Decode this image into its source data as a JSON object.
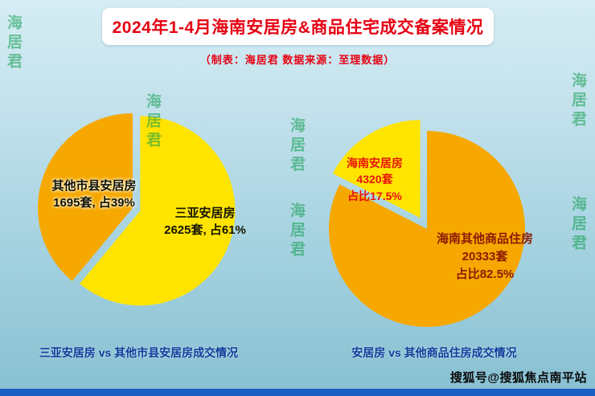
{
  "page": {
    "title": "2024年1-4月海南安居房&商品住宅成交备案情况",
    "subtitle": "（制表：海居君   数据来源：至理数据）",
    "watermark": "海居君",
    "footer_credit": "搜狐号@搜狐焦点南平站"
  },
  "colors": {
    "yellow_slice": "#ffe400",
    "orange_slice": "#f6a800",
    "title_red": "#e60012",
    "caption_blue": "#0e3c9c",
    "watermark_green": "#0e9c4c",
    "bottom_bar_blue": "#1a5ec4"
  },
  "chart_data": [
    {
      "type": "pie",
      "title": "三亚安居房 vs 其他市县安居房成交情况",
      "legend_position": "none",
      "slices": [
        {
          "label": "三亚安居房",
          "value": 2625,
          "pct": 61,
          "color": "#ffe400",
          "label_lines": [
            "三亚安居房",
            "2625套, 占61%"
          ]
        },
        {
          "label": "其他市县安居房",
          "value": 1695,
          "pct": 39,
          "color": "#f6a800",
          "label_lines": [
            "其他市县安居房",
            "1695套, 占39%"
          ]
        }
      ]
    },
    {
      "type": "pie",
      "title": "安居房 vs 其他商品住房成交情况",
      "legend_position": "none",
      "slices": [
        {
          "label": "海南安居房",
          "value": 4320,
          "pct": 17.5,
          "color": "#ffe400",
          "label_lines": [
            "海南安居房",
            "4320套",
            "占比17.5%"
          ]
        },
        {
          "label": "海南其他商品住房",
          "value": 20333,
          "pct": 82.5,
          "color": "#f6a800",
          "label_lines": [
            "海南其他商品住房",
            "20333套",
            "占比82.5%"
          ]
        }
      ]
    }
  ]
}
